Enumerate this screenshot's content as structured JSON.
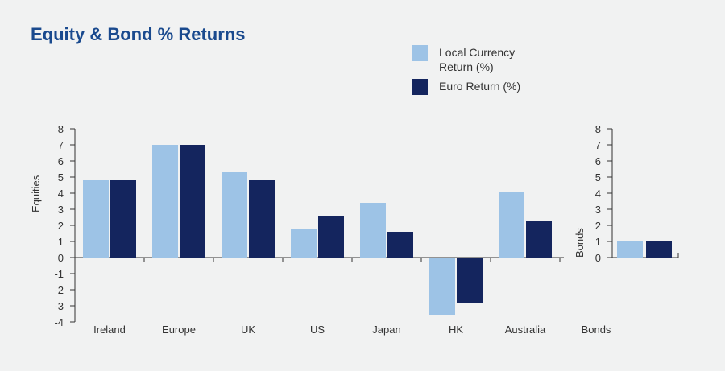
{
  "chart_data": [
    {
      "type": "bar",
      "title": "Equity & Bond % Returns",
      "ylabel": "Equities",
      "categories": [
        "Ireland",
        "Europe",
        "UK",
        "US",
        "Japan",
        "HK",
        "Australia"
      ],
      "series": [
        {
          "name": "Local Currency Return (%)",
          "values": [
            4.8,
            7.0,
            5.3,
            1.8,
            3.4,
            -3.6,
            4.1
          ]
        },
        {
          "name": "Euro Return (%)",
          "values": [
            4.8,
            7.0,
            4.8,
            2.6,
            1.6,
            -2.8,
            2.3
          ]
        }
      ],
      "ylim": [
        -4,
        8
      ],
      "yticks": [
        "8",
        "7",
        "6",
        "5",
        "4",
        "3",
        "2",
        "1",
        "0",
        "-1",
        "-2",
        "-3",
        "-4"
      ]
    },
    {
      "type": "bar",
      "ylabel": "Bonds",
      "categories": [
        "Bonds"
      ],
      "series": [
        {
          "name": "Local Currency Return (%)",
          "values": [
            1.0
          ]
        },
        {
          "name": "Euro Return (%)",
          "values": [
            1.0
          ]
        }
      ],
      "ylim": [
        0,
        8
      ],
      "yticks": [
        "8",
        "7",
        "6",
        "5",
        "4",
        "3",
        "2",
        "1",
        "0"
      ]
    }
  ],
  "legend": {
    "local_label_line1": "Local Currency",
    "local_label_line2": "Return (%)",
    "euro_label": "Euro Return (%)"
  },
  "colors": {
    "local": "#9dc3e6",
    "euro": "#14255e",
    "title": "#1a4a8e",
    "axis": "#333333"
  }
}
